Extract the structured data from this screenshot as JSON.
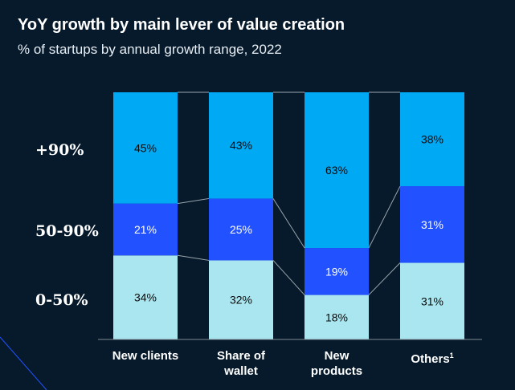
{
  "title": "YoY growth by main lever of value creation",
  "subtitle": "% of startups by annual growth range, 2022",
  "chart_data": {
    "type": "bar",
    "stacked": true,
    "percent_stacked": true,
    "categories": [
      "New clients",
      "Share of wallet",
      "New products",
      "Others"
    ],
    "category_footnotes": [
      "",
      "",
      "",
      "1"
    ],
    "series": [
      {
        "name": "0-50%",
        "values": [
          34,
          32,
          18,
          31
        ],
        "color": "#aae6ef",
        "label_color": "#0a0a0a"
      },
      {
        "name": "50-90%",
        "values": [
          21,
          25,
          19,
          31
        ],
        "color": "#2251ff",
        "label_color": "#ffffff"
      },
      {
        "name": "+90%",
        "values": [
          45,
          43,
          63,
          38
        ],
        "color": "#00a9f4",
        "label_color": "#0a0a0a"
      }
    ],
    "ylim": [
      0,
      100
    ],
    "legend": "left",
    "grid": false,
    "connector_lines": true
  },
  "colors": {
    "background": "#061a2b",
    "connector": "#9aa5ad",
    "axis": "#7f8a93"
  }
}
